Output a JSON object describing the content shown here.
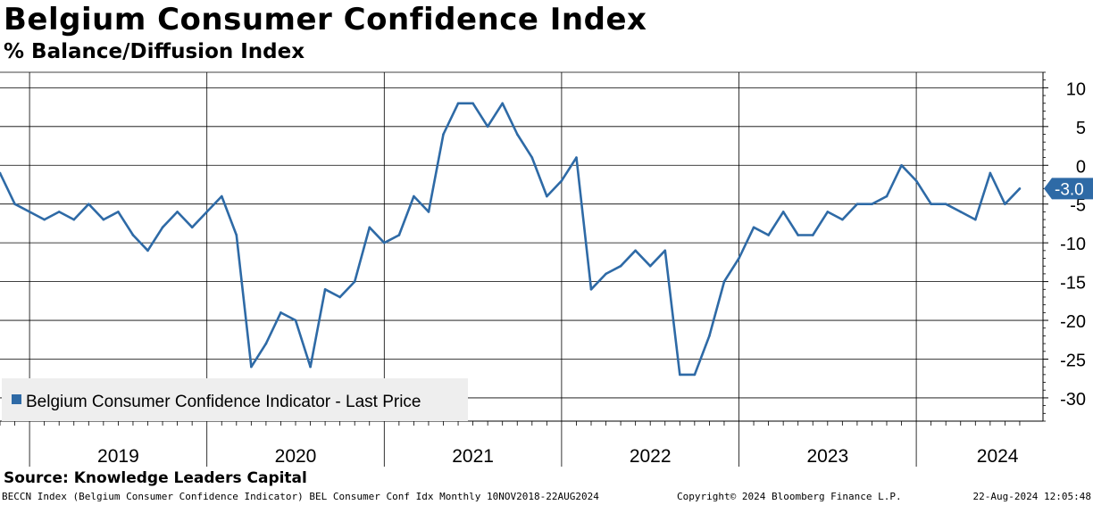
{
  "title": "Belgium Consumer Confidence Index",
  "subtitle": "% Balance/Diffusion Index",
  "source": "Source: Knowledge Leaders Capital",
  "footer": {
    "left": "BECCN Index (Belgium Consumer Confidence Indicator) BEL Consumer Conf Idx  Monthly 10NOV2018-22AUG2024",
    "center": "Copyright© 2024 Bloomberg Finance L.P.",
    "right": "22-Aug-2024 12:05:48"
  },
  "colors": {
    "line": "#2e6aa6",
    "grid": "#000000",
    "legend_bg": "#eeeeee"
  },
  "chart_data": {
    "type": "line",
    "title": "Belgium Consumer Confidence Index",
    "ylabel": "% Balance/Diffusion Index",
    "ylim": [
      -33,
      12
    ],
    "y_ticks": [
      10,
      5,
      0,
      -5,
      -10,
      -15,
      -20,
      -25,
      -30
    ],
    "year_labels": [
      "2019",
      "2020",
      "2021",
      "2022",
      "2023",
      "2024"
    ],
    "last_price_label": "-3.0",
    "legend": {
      "label": "Belgium Consumer Confidence Indicator - Last Price",
      "position": "bottom-left"
    },
    "series": [
      {
        "name": "Belgium Consumer Confidence Indicator - Last Price",
        "x": [
          "2018-11",
          "2018-12",
          "2019-01",
          "2019-02",
          "2019-03",
          "2019-04",
          "2019-05",
          "2019-06",
          "2019-07",
          "2019-08",
          "2019-09",
          "2019-10",
          "2019-11",
          "2019-12",
          "2020-01",
          "2020-02",
          "2020-03",
          "2020-04",
          "2020-05",
          "2020-06",
          "2020-07",
          "2020-08",
          "2020-09",
          "2020-10",
          "2020-11",
          "2020-12",
          "2021-01",
          "2021-02",
          "2021-03",
          "2021-04",
          "2021-05",
          "2021-06",
          "2021-07",
          "2021-08",
          "2021-09",
          "2021-10",
          "2021-11",
          "2021-12",
          "2022-01",
          "2022-02",
          "2022-03",
          "2022-04",
          "2022-05",
          "2022-06",
          "2022-07",
          "2022-08",
          "2022-09",
          "2022-10",
          "2022-11",
          "2022-12",
          "2023-01",
          "2023-02",
          "2023-03",
          "2023-04",
          "2023-05",
          "2023-06",
          "2023-07",
          "2023-08",
          "2023-09",
          "2023-10",
          "2023-11",
          "2023-12",
          "2024-01",
          "2024-02",
          "2024-03",
          "2024-04",
          "2024-05",
          "2024-06",
          "2024-07",
          "2024-08"
        ],
        "values": [
          -1,
          -5,
          -6,
          -7,
          -6,
          -7,
          -5,
          -7,
          -6,
          -9,
          -11,
          -8,
          -6,
          -8,
          -6,
          -4,
          -9,
          -26,
          -23,
          -19,
          -20,
          -26,
          -16,
          -17,
          -15,
          -8,
          -10,
          -9,
          -4,
          -6,
          4,
          8,
          8,
          5,
          8,
          4,
          1,
          -4,
          -2,
          1,
          -16,
          -14,
          -13,
          -11,
          -13,
          -11,
          -27,
          -27,
          -22,
          -15,
          -12,
          -8,
          -9,
          -6,
          -9,
          -9,
          -6,
          -7,
          -5,
          -5,
          -4,
          0,
          -2,
          -5,
          -5,
          -6,
          -7,
          -1,
          -5,
          -3
        ]
      }
    ]
  }
}
